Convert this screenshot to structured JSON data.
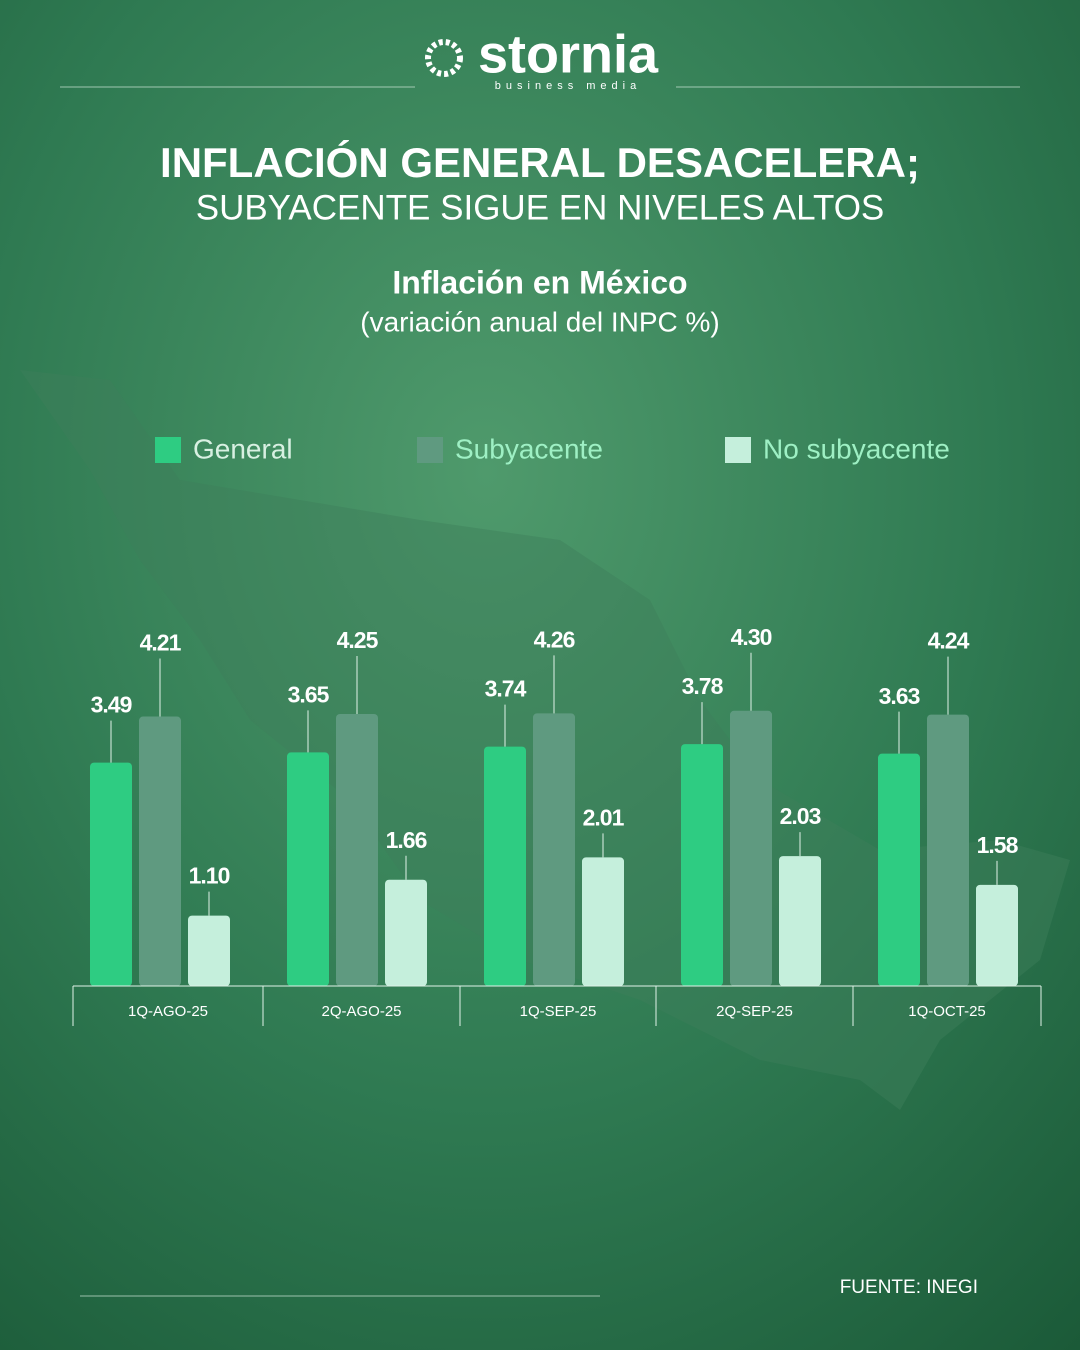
{
  "brand": {
    "name": "stornia",
    "tagline": "business media"
  },
  "headline": {
    "line1": "INFLACIÓN GENERAL DESACELERA;",
    "line2": "SUBYACENTE SIGUE EN NIVELES ALTOS"
  },
  "chart_data": {
    "type": "bar",
    "title": "Inflación en México",
    "subtitle": "(variación anual del INPC %)",
    "categories": [
      "1Q-AGO-25",
      "2Q-AGO-25",
      "1Q-SEP-25",
      "2Q-SEP-25",
      "1Q-OCT-25"
    ],
    "series": [
      {
        "name": "General",
        "color": "#2ecc82",
        "values": [
          3.49,
          3.65,
          3.74,
          3.78,
          3.63
        ],
        "value_labels": [
          "3.49",
          "3.65",
          "3.74",
          "3.78",
          "3.63"
        ]
      },
      {
        "name": "Subyacente",
        "color": "#5f9a80",
        "values": [
          4.21,
          4.25,
          4.26,
          4.3,
          4.24
        ],
        "value_labels": [
          "4.21",
          "4.25",
          "4.26",
          "4.30",
          "4.24"
        ]
      },
      {
        "name": "No subyacente",
        "color": "#c5efdc",
        "values": [
          1.1,
          1.66,
          2.01,
          2.03,
          1.58
        ],
        "value_labels": [
          "1.10",
          "1.66",
          "2.01",
          "2.03",
          "1.58"
        ]
      }
    ],
    "legend": "top"
  },
  "source": "FUENTE: INEGI"
}
